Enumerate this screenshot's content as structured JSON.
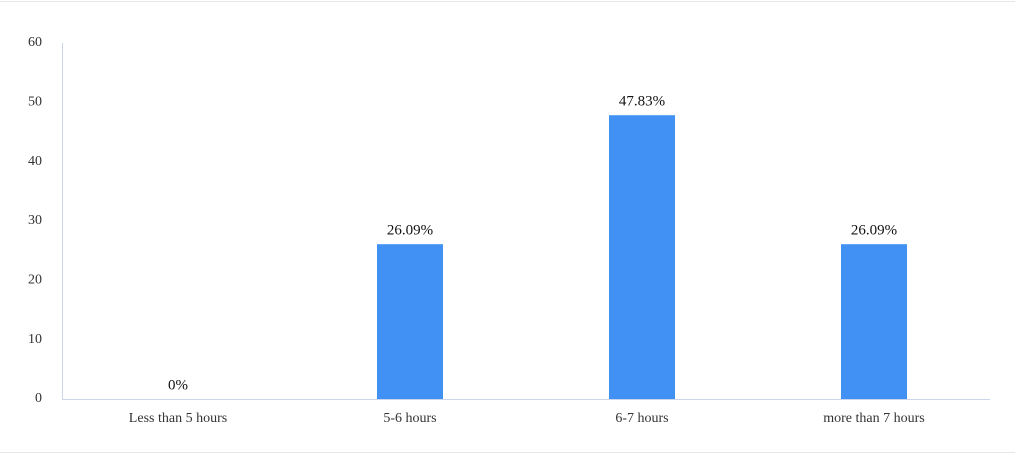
{
  "chart_data": {
    "type": "bar",
    "categories": [
      "Less than 5 hours",
      "5-6 hours",
      "6-7 hours",
      "more than 7 hours"
    ],
    "values": [
      0,
      26.09,
      47.83,
      26.09
    ],
    "value_labels": [
      "0%",
      "26.09%",
      "47.83%",
      "26.09%"
    ],
    "color": "#4191f5",
    "ylim": [
      0,
      60
    ],
    "yticks": [
      0,
      10,
      20,
      30,
      40,
      50,
      60
    ],
    "grid": false
  }
}
